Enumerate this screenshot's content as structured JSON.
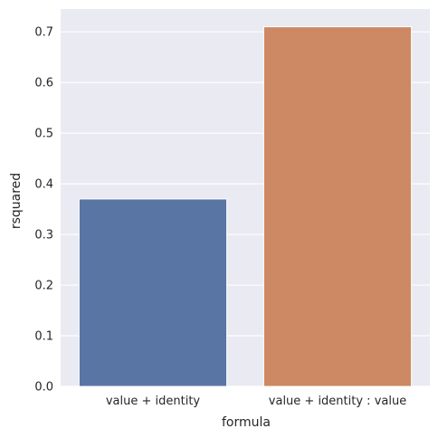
{
  "chart_data": {
    "type": "bar",
    "categories": [
      "value + identity",
      "value + identity : value"
    ],
    "values": [
      0.37,
      0.71
    ],
    "xlabel": "formula",
    "ylabel": "rsquared",
    "ylim": [
      0,
      0.745
    ],
    "yticks": [
      "0.0",
      "0.1",
      "0.2",
      "0.3",
      "0.4",
      "0.5",
      "0.6",
      "0.7"
    ],
    "grid": true,
    "legend": "none",
    "colors": {
      "background": "#eaeaf2",
      "grid": "#ffffff",
      "bars": [
        "#5975a4",
        "#cc8963"
      ]
    }
  }
}
